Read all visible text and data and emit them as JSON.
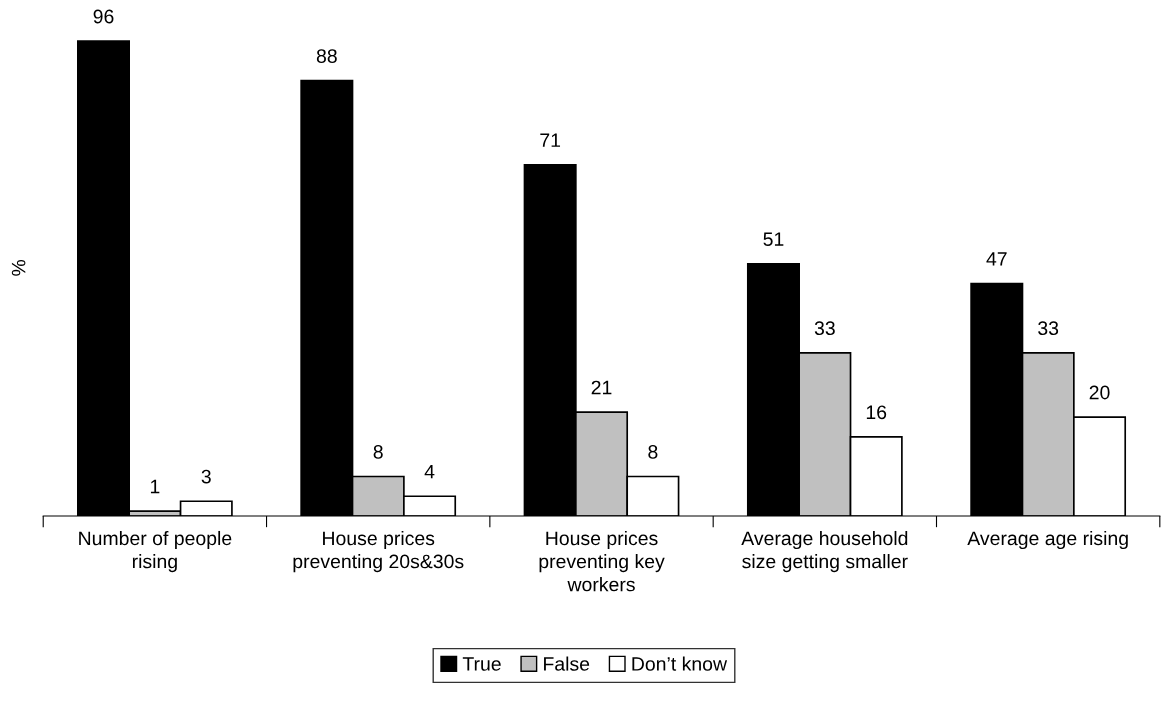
{
  "chart_data": {
    "type": "bar",
    "ylabel": "%",
    "categories": [
      "Number of people\nrising",
      "House prices\npreventing 20s&30s",
      "House prices\npreventing key\nworkers",
      "Average household\nsize getting smaller",
      "Average age rising"
    ],
    "series": [
      {
        "name": "True",
        "color": "#000000",
        "values": [
          96,
          88,
          71,
          51,
          47
        ]
      },
      {
        "name": "False",
        "color": "#c0c0c0",
        "values": [
          1,
          8,
          21,
          33,
          33
        ]
      },
      {
        "name": "Don’t know",
        "color": "#ffffff",
        "values": [
          3,
          4,
          8,
          16,
          20
        ]
      }
    ],
    "data_labels": true,
    "legend": "bottom",
    "grid": false,
    "tick_labels": "x"
  }
}
